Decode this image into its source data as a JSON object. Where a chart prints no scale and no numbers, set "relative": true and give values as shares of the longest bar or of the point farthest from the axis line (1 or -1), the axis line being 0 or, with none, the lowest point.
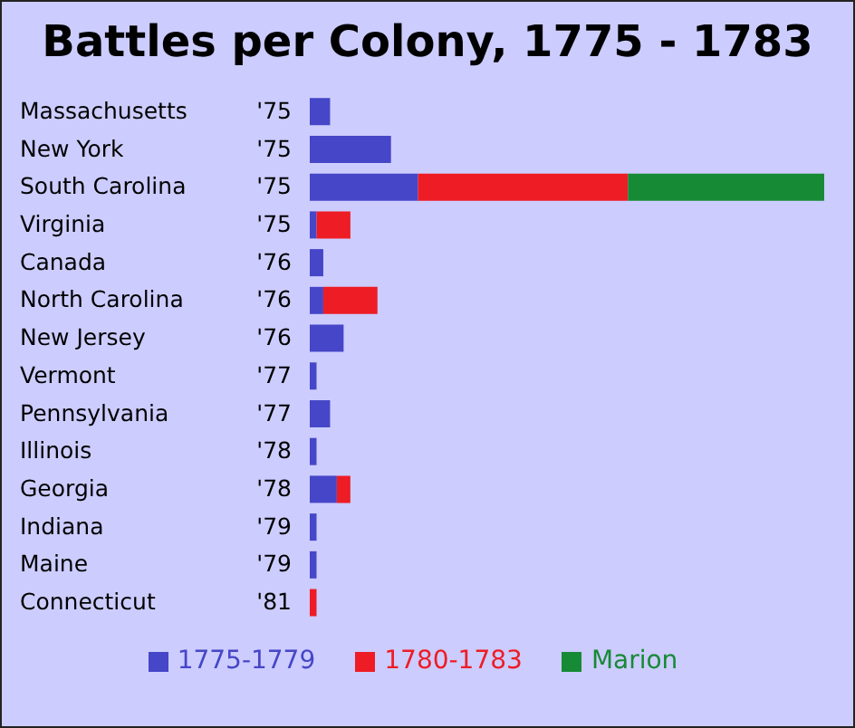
{
  "chart_data": {
    "type": "bar",
    "orientation": "horizontal",
    "stacked": true,
    "relative": true,
    "title": "Battles per Colony, 1775 - 1783",
    "categories": [
      "Massachusetts",
      "New York",
      "South Carolina",
      "Virginia",
      "Canada",
      "North Carolina",
      "New Jersey",
      "Vermont",
      "Pennsylvania",
      "Illinois",
      "Georgia",
      "Indiana",
      "Maine",
      "Connecticut"
    ],
    "series": [
      {
        "name": "1775-1779",
        "color": "#4646c8",
        "values": [
          0.0395,
          0.1579,
          0.2105,
          0.0132,
          0.0263,
          0.0263,
          0.0658,
          0.0132,
          0.0395,
          0.0132,
          0.0526,
          0.0132,
          0.0132,
          0
        ]
      },
      {
        "name": "1780-1783",
        "color": "#ee1c24",
        "values": [
          0,
          0,
          0.4079,
          0.0658,
          0,
          0.1053,
          0,
          0,
          0,
          0,
          0.0263,
          0,
          0,
          0.0132
        ]
      },
      {
        "name": "Marion",
        "color": "#178a35",
        "values": [
          0,
          0,
          0.3816,
          0,
          0,
          0,
          0,
          0,
          0,
          0,
          0,
          0,
          0,
          0
        ]
      }
    ],
    "annotations": [
      "'75",
      "'75",
      "'75",
      "'75",
      "'76",
      "'76",
      "'76",
      "'77",
      "'77",
      "'78",
      "'78",
      "'79",
      "'79",
      "'81"
    ],
    "legend": "bottom",
    "grid": false
  }
}
